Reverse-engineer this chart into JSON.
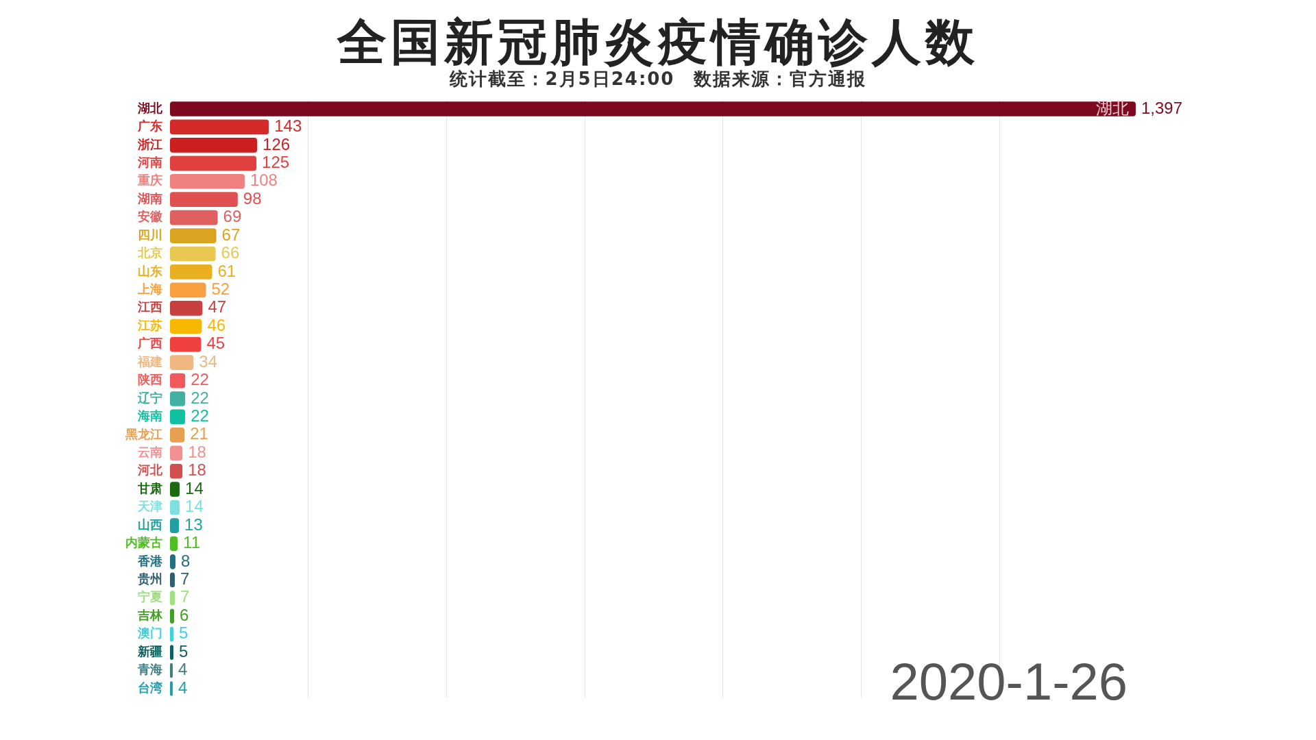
{
  "chart_data": {
    "type": "bar",
    "orientation": "horizontal",
    "title": "全国新冠肺炎疫情确诊人数",
    "subtitle": "统计截至：2月5日24:00　数据来源：官方通报",
    "categories": [
      "湖北",
      "广东",
      "浙江",
      "河南",
      "重庆",
      "湖南",
      "安徽",
      "四川",
      "北京",
      "山东",
      "上海",
      "江西",
      "江苏",
      "广西",
      "福建",
      "陕西",
      "辽宁",
      "海南",
      "黑龙江",
      "云南",
      "河北",
      "甘肃",
      "天津",
      "山西",
      "内蒙古",
      "香港",
      "贵州",
      "宁夏",
      "吉林",
      "澳门",
      "新疆",
      "青海",
      "台湾"
    ],
    "values": [
      1397,
      143,
      126,
      125,
      108,
      98,
      69,
      67,
      66,
      61,
      52,
      47,
      46,
      45,
      34,
      22,
      22,
      22,
      21,
      18,
      18,
      14,
      14,
      13,
      11,
      8,
      7,
      7,
      6,
      5,
      5,
      4,
      4
    ],
    "colors": [
      "#7d0a1e",
      "#d42a2a",
      "#cc1f1f",
      "#e04040",
      "#f08080",
      "#e05050",
      "#e06060",
      "#d9a520",
      "#e8c850",
      "#e8b020",
      "#f8a040",
      "#c84040",
      "#f8b800",
      "#f04040",
      "#f0b880",
      "#f05a5a",
      "#40b0a0",
      "#10c0a0",
      "#e8a050",
      "#f09090",
      "#d05050",
      "#1a6a10",
      "#80e0e0",
      "#20a0a0",
      "#50c020",
      "#207080",
      "#306070",
      "#a0e080",
      "#40a020",
      "#40d0e0",
      "#106060",
      "#408080",
      "#20a0b0"
    ],
    "value_labels": [
      "1,397",
      "143",
      "126",
      "125",
      "108",
      "98",
      "69",
      "67",
      "66",
      "61",
      "52",
      "47",
      "46",
      "45",
      "34",
      "22",
      "22",
      "22",
      "21",
      "18",
      "18",
      "14",
      "14",
      "13",
      "11",
      "8",
      "7",
      "7",
      "6",
      "5",
      "5",
      "4",
      "4"
    ],
    "xticks": [
      {
        "value": 200,
        "label": null
      },
      {
        "value": 400,
        "label": null
      },
      {
        "value": 600,
        "label": null
      },
      {
        "value": 800,
        "label": null
      },
      {
        "value": 1000,
        "label": null
      },
      {
        "value": 1200,
        "label": null
      }
    ],
    "grid": "x",
    "tick_labels": "y",
    "legend": false,
    "annotations": [
      {
        "text": "湖北",
        "x": 1397,
        "y": "湖北"
      },
      "2020-1-26"
    ]
  }
}
